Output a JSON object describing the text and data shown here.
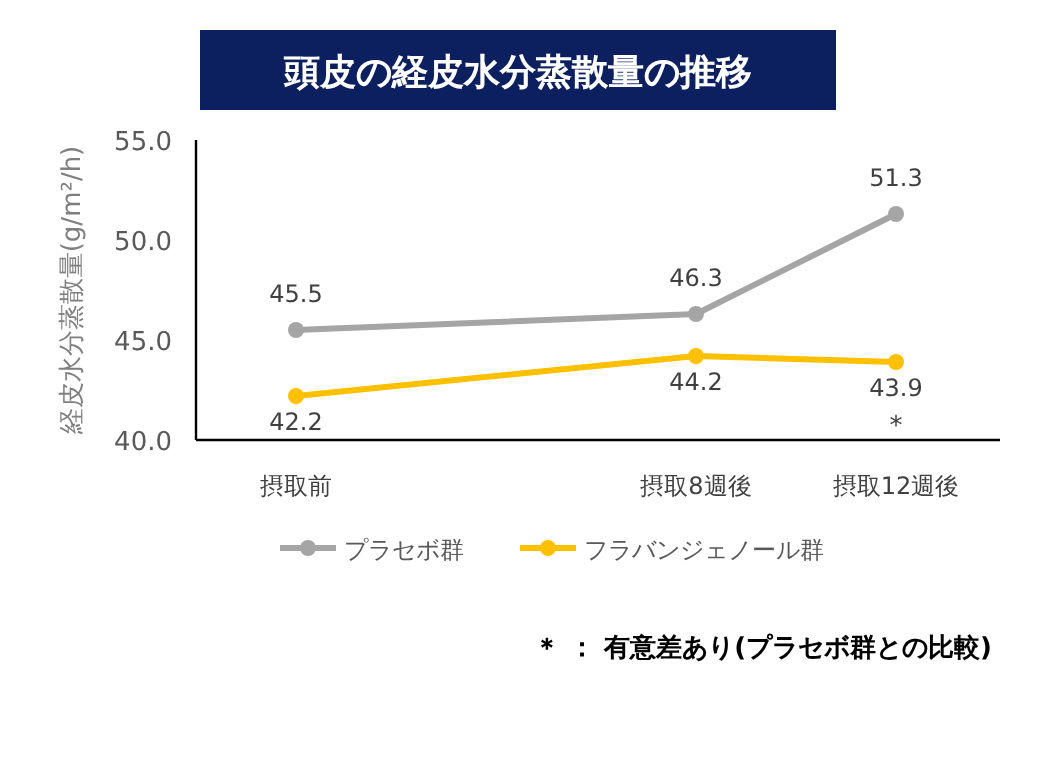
{
  "chart_data": {
    "type": "line",
    "title": "頭皮の経皮水分蒸散量の推移",
    "ylabel": "経皮水分蒸散量(g/m²/h)",
    "categories": [
      "摂取前",
      null,
      "摂取8週後",
      "摂取12週後"
    ],
    "ylim": [
      40,
      55
    ],
    "yticks": [
      {
        "value": 40,
        "label": "40.0"
      },
      {
        "value": 45,
        "label": "45.0"
      },
      {
        "value": 50,
        "label": "50.0"
      },
      {
        "value": 55,
        "label": "55.0"
      }
    ],
    "series": [
      {
        "name": "プラセボ群",
        "color": "#a5a5a5",
        "values": [
          45.5,
          null,
          46.3,
          51.3
        ]
      },
      {
        "name": "フラバンジェノール群",
        "color": "#ffc000",
        "values": [
          42.2,
          null,
          44.2,
          43.9
        ]
      }
    ],
    "data_labels": true,
    "marker": "circle",
    "grid": false,
    "legend": "bottom",
    "annotations": [
      "*",
      "＊ ： 有意差あり(プラセボ群との比較)"
    ]
  }
}
